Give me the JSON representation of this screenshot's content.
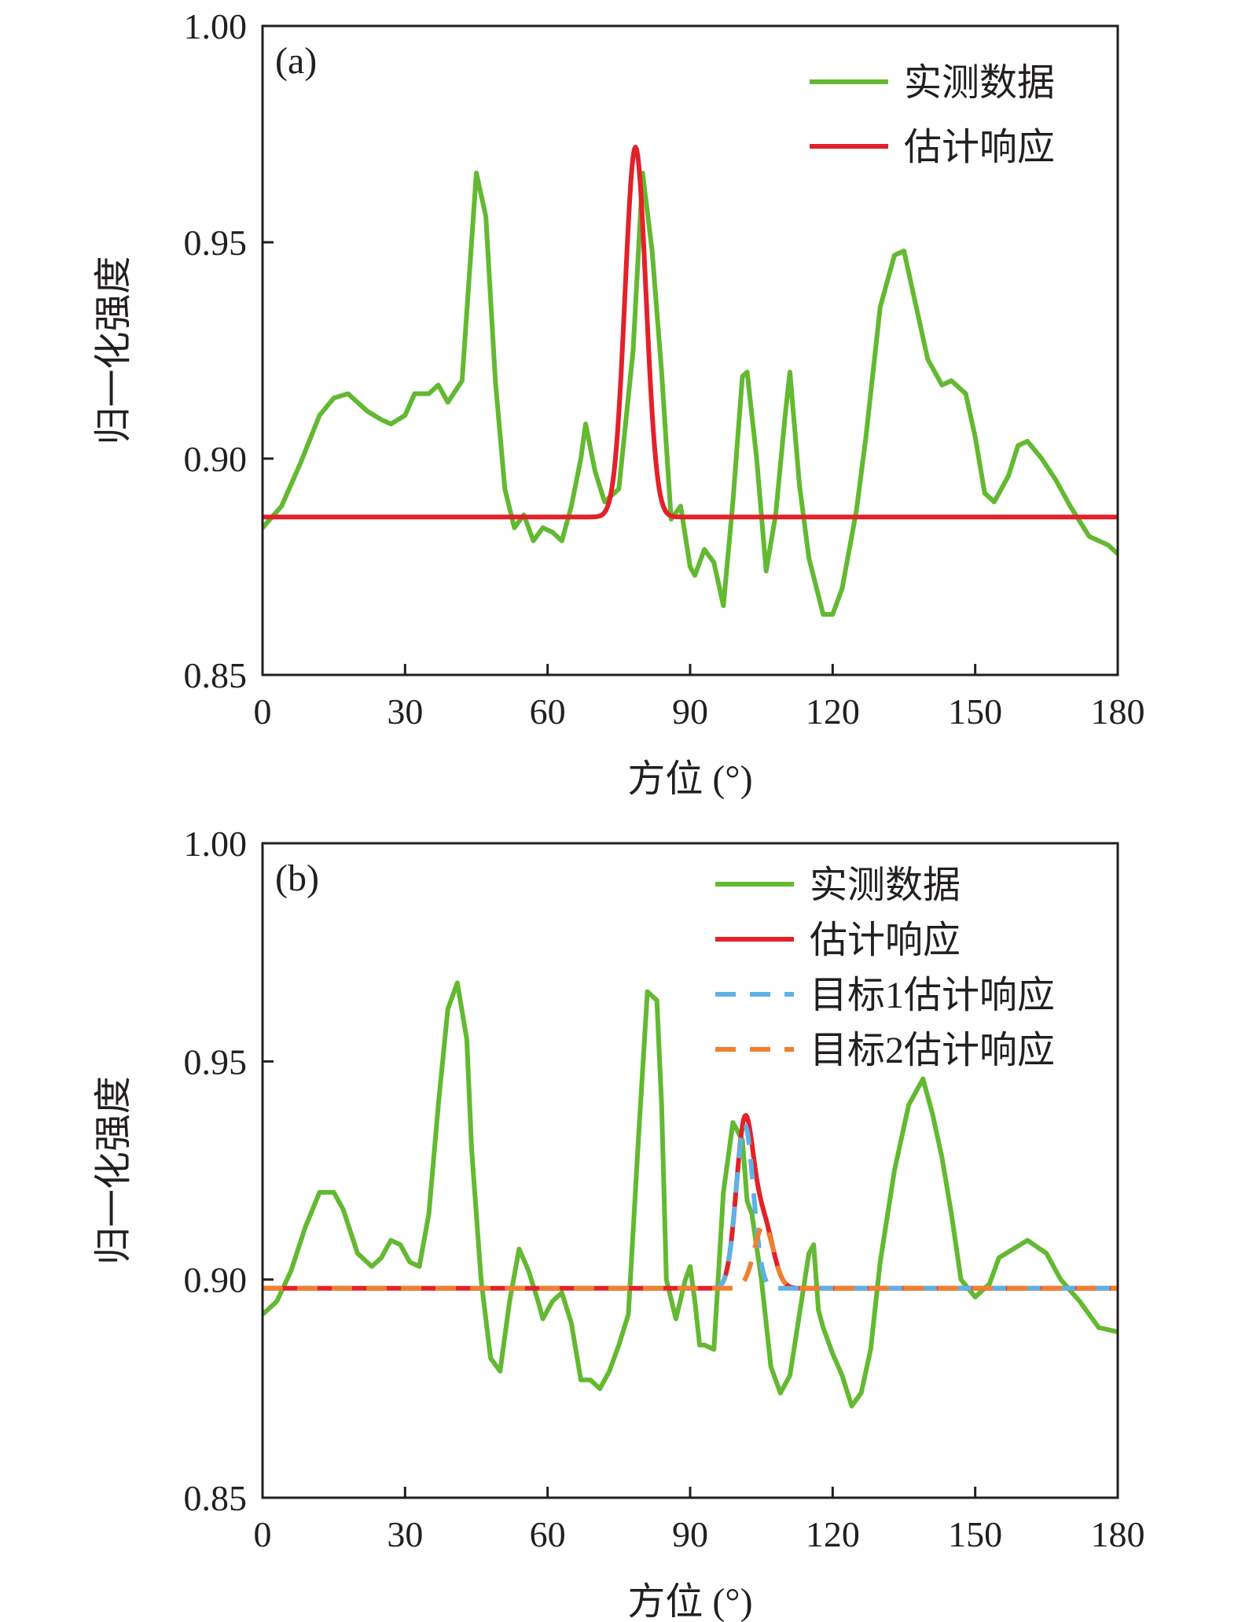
{
  "figure": {
    "background": "#ffffff"
  },
  "chart_data": [
    {
      "panel_label": "(a)",
      "type": "line",
      "xlabel": "方位 (°)",
      "ylabel": "归一化强度",
      "xlim": [
        0,
        180
      ],
      "ylim": [
        0.85,
        1.0
      ],
      "xticks": [
        0,
        30,
        60,
        90,
        120,
        150,
        180
      ],
      "yticks": [
        0.85,
        0.9,
        0.95,
        1.0
      ],
      "xtick_labels": [
        "0",
        "30",
        "60",
        "90",
        "120",
        "150",
        "180"
      ],
      "ytick_labels": [
        "0.85",
        "0.90",
        "0.95",
        "1.00"
      ],
      "grid": false,
      "legend_position": "top-right",
      "series": [
        {
          "name": "实测数据",
          "color": "#63b931",
          "style": "solid",
          "x": [
            0,
            4,
            8,
            12,
            15,
            18,
            20,
            22,
            25,
            27,
            30,
            32,
            35,
            37,
            39,
            42,
            44,
            45,
            47,
            49,
            51,
            53,
            55,
            57,
            59,
            61,
            63,
            65,
            67,
            68,
            70,
            72,
            75,
            78,
            80,
            82,
            84,
            86,
            88,
            90,
            91,
            93,
            95,
            97,
            99,
            101,
            102,
            104,
            106,
            108,
            110,
            111,
            113,
            115,
            118,
            120,
            122,
            125,
            127,
            130,
            133,
            135,
            137,
            140,
            143,
            145,
            148,
            150,
            152,
            154,
            157,
            159,
            161,
            164,
            167,
            170,
            174,
            178,
            180
          ],
          "y": [
            0.884,
            0.889,
            0.899,
            0.91,
            0.914,
            0.915,
            0.913,
            0.911,
            0.909,
            0.908,
            0.91,
            0.915,
            0.915,
            0.917,
            0.913,
            0.918,
            0.95,
            0.966,
            0.956,
            0.918,
            0.893,
            0.884,
            0.887,
            0.881,
            0.884,
            0.883,
            0.881,
            0.889,
            0.9,
            0.908,
            0.897,
            0.89,
            0.893,
            0.925,
            0.966,
            0.948,
            0.92,
            0.886,
            0.889,
            0.875,
            0.873,
            0.879,
            0.876,
            0.866,
            0.89,
            0.919,
            0.92,
            0.9,
            0.874,
            0.887,
            0.91,
            0.92,
            0.894,
            0.877,
            0.864,
            0.864,
            0.87,
            0.888,
            0.905,
            0.935,
            0.947,
            0.948,
            0.938,
            0.923,
            0.917,
            0.918,
            0.915,
            0.905,
            0.892,
            0.89,
            0.896,
            0.903,
            0.904,
            0.9,
            0.895,
            0.889,
            0.882,
            0.88,
            0.878
          ]
        },
        {
          "name": "估计响应",
          "color": "#e32129",
          "style": "solid",
          "baseline": 0.8865,
          "peaks": [
            {
              "center": 78.5,
              "amplitude": 0.0855,
              "sigma": 2.2
            }
          ]
        }
      ]
    },
    {
      "panel_label": "(b)",
      "type": "line",
      "xlabel": "方位 (°)",
      "ylabel": "归一化强度",
      "xlim": [
        0,
        180
      ],
      "ylim": [
        0.85,
        1.0
      ],
      "xticks": [
        0,
        30,
        60,
        90,
        120,
        150,
        180
      ],
      "yticks": [
        0.85,
        0.9,
        0.95,
        1.0
      ],
      "xtick_labels": [
        "0",
        "30",
        "60",
        "90",
        "120",
        "150",
        "180"
      ],
      "ytick_labels": [
        "0.85",
        "0.90",
        "0.95",
        "1.00"
      ],
      "grid": false,
      "legend_position": "top-right",
      "series": [
        {
          "name": "实测数据",
          "color": "#63b931",
          "style": "solid",
          "x": [
            0,
            3,
            6,
            9,
            12,
            15,
            17,
            20,
            23,
            25,
            27,
            29,
            31,
            33,
            35,
            37,
            39,
            41,
            43,
            44,
            46,
            48,
            50,
            52,
            54,
            56,
            58,
            59,
            61,
            63,
            65,
            67,
            69,
            71,
            73,
            75,
            77,
            79,
            81,
            83,
            84,
            85,
            87,
            89,
            90,
            91,
            92,
            93,
            95,
            97,
            99,
            101,
            102,
            103,
            105,
            107,
            109,
            111,
            113,
            115,
            116,
            117,
            118,
            120,
            122,
            124,
            126,
            128,
            130,
            133,
            136,
            139,
            141,
            143,
            145,
            147,
            150,
            153,
            155,
            158,
            161,
            165,
            168,
            172,
            176,
            180
          ],
          "y": [
            0.892,
            0.895,
            0.902,
            0.912,
            0.92,
            0.92,
            0.916,
            0.906,
            0.903,
            0.905,
            0.909,
            0.908,
            0.904,
            0.903,
            0.915,
            0.94,
            0.962,
            0.968,
            0.955,
            0.93,
            0.9,
            0.882,
            0.879,
            0.895,
            0.907,
            0.902,
            0.895,
            0.891,
            0.895,
            0.897,
            0.89,
            0.877,
            0.877,
            0.875,
            0.879,
            0.885,
            0.892,
            0.93,
            0.966,
            0.964,
            0.94,
            0.9,
            0.891,
            0.9,
            0.903,
            0.895,
            0.885,
            0.885,
            0.884,
            0.92,
            0.936,
            0.932,
            0.918,
            0.915,
            0.9,
            0.88,
            0.874,
            0.878,
            0.892,
            0.906,
            0.908,
            0.893,
            0.889,
            0.883,
            0.878,
            0.871,
            0.874,
            0.884,
            0.904,
            0.925,
            0.94,
            0.946,
            0.938,
            0.928,
            0.915,
            0.9,
            0.896,
            0.899,
            0.905,
            0.907,
            0.909,
            0.906,
            0.9,
            0.895,
            0.889,
            0.888
          ]
        },
        {
          "name": "估计响应",
          "color": "#e32129",
          "style": "solid",
          "baseline": 0.898,
          "peaks": [
            {
              "center": 101.5,
              "amplitude": 0.0375,
              "sigma": 1.8
            },
            {
              "center": 105.5,
              "amplitude": 0.0145,
              "sigma": 2.0
            }
          ]
        },
        {
          "name": "目标1估计响应",
          "color": "#5fb1e4",
          "style": "dashed",
          "baseline": 0.898,
          "peaks": [
            {
              "center": 101.5,
              "amplitude": 0.0375,
              "sigma": 1.8
            }
          ]
        },
        {
          "name": "目标2估计响应",
          "color": "#f08030",
          "style": "dashed",
          "baseline": 0.898,
          "peaks": [
            {
              "center": 105.5,
              "amplitude": 0.0145,
              "sigma": 2.0
            }
          ]
        }
      ]
    }
  ]
}
